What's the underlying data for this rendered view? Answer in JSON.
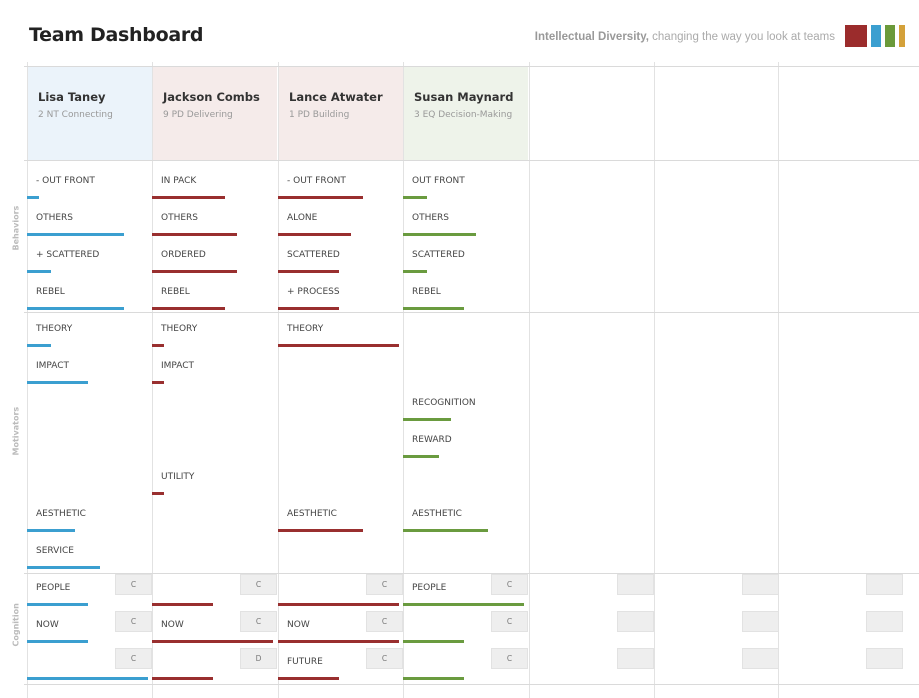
{
  "header": {
    "title": "Team Dashboard",
    "tagline_bold": "Intellectual Diversity,",
    "tagline_rest": " changing the way you look at teams",
    "swatches": [
      "#9b2c2c",
      "#3b9fd0",
      "#6b9a3a",
      "#d4a13a"
    ]
  },
  "colors": {
    "blue": "#3b9fd0",
    "red": "#992f2f",
    "green": "#6a9b3f",
    "header_blue": "#ebf3fa",
    "header_red": "#f5ebea",
    "header_green": "#eef3ea"
  },
  "sections": {
    "behaviors": "Behaviors",
    "motivators": "Motivators",
    "cognition": "Cognition"
  },
  "members": [
    {
      "name": "Lisa Taney",
      "subtitle": "2 NT Connecting",
      "color": "blue"
    },
    {
      "name": "Jackson Combs",
      "subtitle": "9 PD Delivering",
      "color": "red"
    },
    {
      "name": "Lance Atwater",
      "subtitle": "1 PD Building",
      "color": "red"
    },
    {
      "name": "Susan Maynard",
      "subtitle": "3 EQ Decision-Making",
      "color": "green"
    }
  ],
  "rows": {
    "labels": [
      [
        "- OUT FRONT",
        "OTHERS",
        "+ SCATTERED",
        "REBEL",
        "THEORY",
        "IMPACT",
        "",
        "",
        "",
        "AESTHETIC",
        "SERVICE",
        "PEOPLE",
        "NOW",
        ""
      ],
      [
        "IN PACK",
        "OTHERS",
        "ORDERED",
        "REBEL",
        "THEORY",
        "IMPACT",
        "",
        "",
        "UTILITY",
        "",
        "",
        "",
        "NOW",
        ""
      ],
      [
        "- OUT FRONT",
        "ALONE",
        "SCATTERED",
        "+ PROCESS",
        "THEORY",
        "",
        "",
        "",
        "",
        "AESTHETIC",
        "",
        "",
        "NOW",
        "FUTURE"
      ],
      [
        "OUT FRONT",
        "OTHERS",
        "SCATTERED",
        "REBEL",
        "",
        "",
        "RECOGNITION",
        "REWARD",
        "",
        "AESTHETIC",
        "",
        "PEOPLE",
        "",
        ""
      ]
    ],
    "values": [
      [
        0.1,
        0.8,
        0.2,
        0.8,
        0.2,
        0.5,
        0,
        0,
        0,
        0.4,
        0.6,
        0.5,
        0.5,
        1.0
      ],
      [
        0.6,
        0.7,
        0.7,
        0.6,
        0.1,
        0.1,
        0,
        0,
        0.1,
        0,
        0,
        0.5,
        1.0,
        0.5
      ],
      [
        0.7,
        0.6,
        0.5,
        0.5,
        1.0,
        0,
        0,
        0,
        0,
        0.7,
        0,
        1.0,
        1.0,
        0.5
      ],
      [
        0.2,
        0.6,
        0.2,
        0.5,
        0,
        0,
        0.4,
        0.3,
        0,
        0.7,
        0,
        1.0,
        0.5,
        0.5
      ]
    ]
  },
  "cognition_boxes": [
    [
      "C",
      "C",
      "C"
    ],
    [
      "C",
      "C",
      "D"
    ],
    [
      "C",
      "C",
      "C"
    ],
    [
      "C",
      "C",
      "C"
    ],
    [
      "",
      "",
      ""
    ],
    [
      "",
      "",
      ""
    ],
    [
      "",
      "",
      ""
    ]
  ]
}
